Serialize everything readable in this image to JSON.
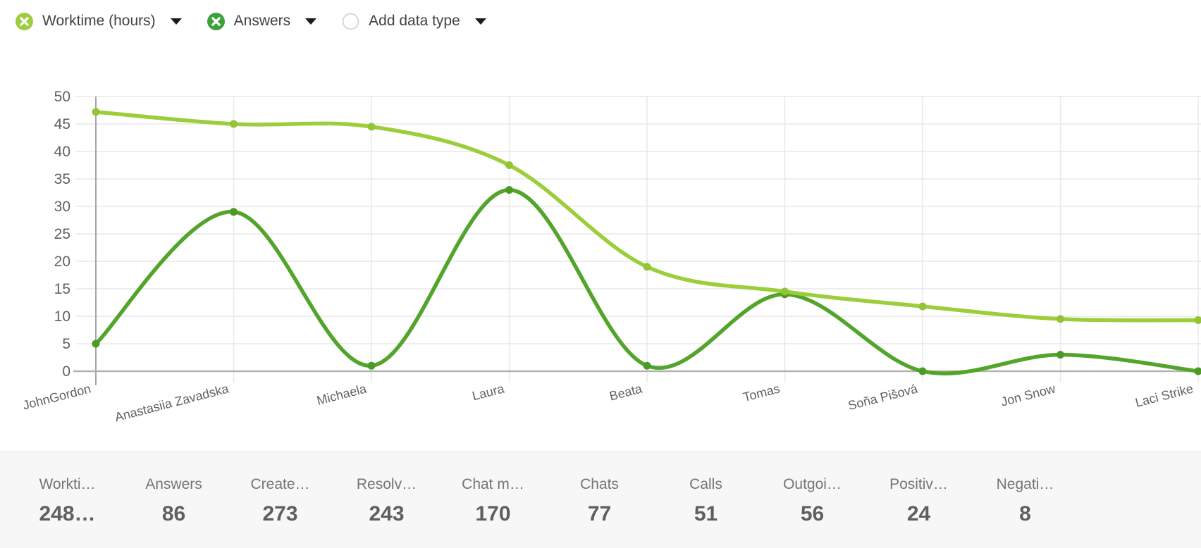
{
  "header": {
    "chips": [
      {
        "label": "Worktime (hours)",
        "icon": "circle-x-icon",
        "color": "#9cce3c"
      },
      {
        "label": "Answers",
        "icon": "circle-x-icon",
        "color": "#3ca23c"
      },
      {
        "label": "Add data type",
        "icon": "circle-outline-icon",
        "color": "#ffffff"
      }
    ]
  },
  "chart_data": {
    "type": "line",
    "categories": [
      "JohnGordon",
      "Anastasiia Zavadska",
      "Michaela",
      "Laura",
      "Beata",
      "Tomas",
      "Soňa Pišová",
      "Jon Snow",
      "Laci Strike"
    ],
    "series": [
      {
        "name": "Worktime (hours)",
        "color": "#9cce3c",
        "marker_color": "#93c437",
        "values": [
          47.2,
          45,
          44.5,
          37.5,
          19,
          14.5,
          11.8,
          9.5,
          9.3
        ]
      },
      {
        "name": "Answers",
        "color": "#53a42b",
        "marker_color": "#4a9a24",
        "values": [
          5,
          29,
          1,
          33,
          1,
          14,
          0,
          3,
          0
        ]
      }
    ],
    "title": "",
    "xlabel": "",
    "ylabel": "",
    "ylim": [
      0,
      50
    ],
    "ytick_step": 5,
    "grid": true,
    "legend_position": "top"
  },
  "stats": {
    "items": [
      {
        "label": "Workti…",
        "value": "248…"
      },
      {
        "label": "Answers",
        "value": "86"
      },
      {
        "label": "Create…",
        "value": "273"
      },
      {
        "label": "Resolv…",
        "value": "243"
      },
      {
        "label": "Chat m…",
        "value": "170"
      },
      {
        "label": "Chats",
        "value": "77"
      },
      {
        "label": "Calls",
        "value": "51"
      },
      {
        "label": "Outgoi…",
        "value": "56"
      },
      {
        "label": "Positiv…",
        "value": "24"
      },
      {
        "label": "Negati…",
        "value": "8"
      }
    ]
  },
  "style": {
    "grid_color": "#e8e8e8",
    "axis_column_color": "#a5a5a5",
    "baseline_color": "#b2b2b2",
    "tick_text_color": "#616161",
    "empty_circle_border": "#d9d9d9"
  }
}
